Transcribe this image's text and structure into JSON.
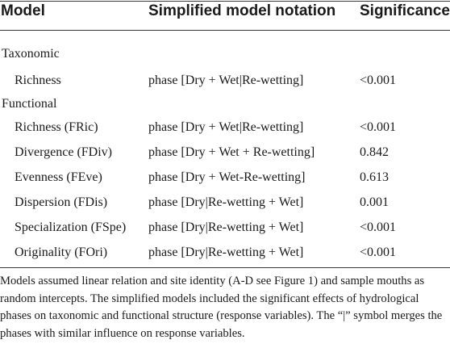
{
  "table": {
    "headers": {
      "model": "Model",
      "notation": "Simplified model notation",
      "significance": "Significance"
    },
    "groups": [
      {
        "label": "Taxonomic",
        "rows": [
          {
            "model": "Richness",
            "notation": "phase [Dry + Wet|Re-wetting]",
            "significance": "<0.001"
          }
        ]
      },
      {
        "label": "Functional",
        "rows": [
          {
            "model": "Richness (FRic)",
            "notation": "phase [Dry + Wet|Re-wetting]",
            "significance": "<0.001"
          },
          {
            "model": "Divergence (FDiv)",
            "notation": "phase [Dry + Wet + Re-wetting]",
            "significance": "0.842"
          },
          {
            "model": "Evenness (FEve)",
            "notation": "phase [Dry + Wet-Re-wetting]",
            "significance": "0.613"
          },
          {
            "model": "Dispersion (FDis)",
            "notation": "phase [Dry|Re-wetting + Wet]",
            "significance": "0.001"
          },
          {
            "model": "Specialization (FSpe)",
            "notation": "phase [Dry|Re-wetting + Wet]",
            "significance": "<0.001"
          },
          {
            "model": "Originality (FOri)",
            "notation": "phase [Dry|Re-wetting + Wet]",
            "significance": "<0.001"
          }
        ]
      }
    ]
  },
  "footnote": "Models assumed linear relation and site identity (A-D see Figure 1) and sample mouths as random intercepts. The simplified models included the significant effects of hydrological phases on taxonomic and functional structure (response variables). The “|” symbol merges the phases with similar influence on response variables."
}
